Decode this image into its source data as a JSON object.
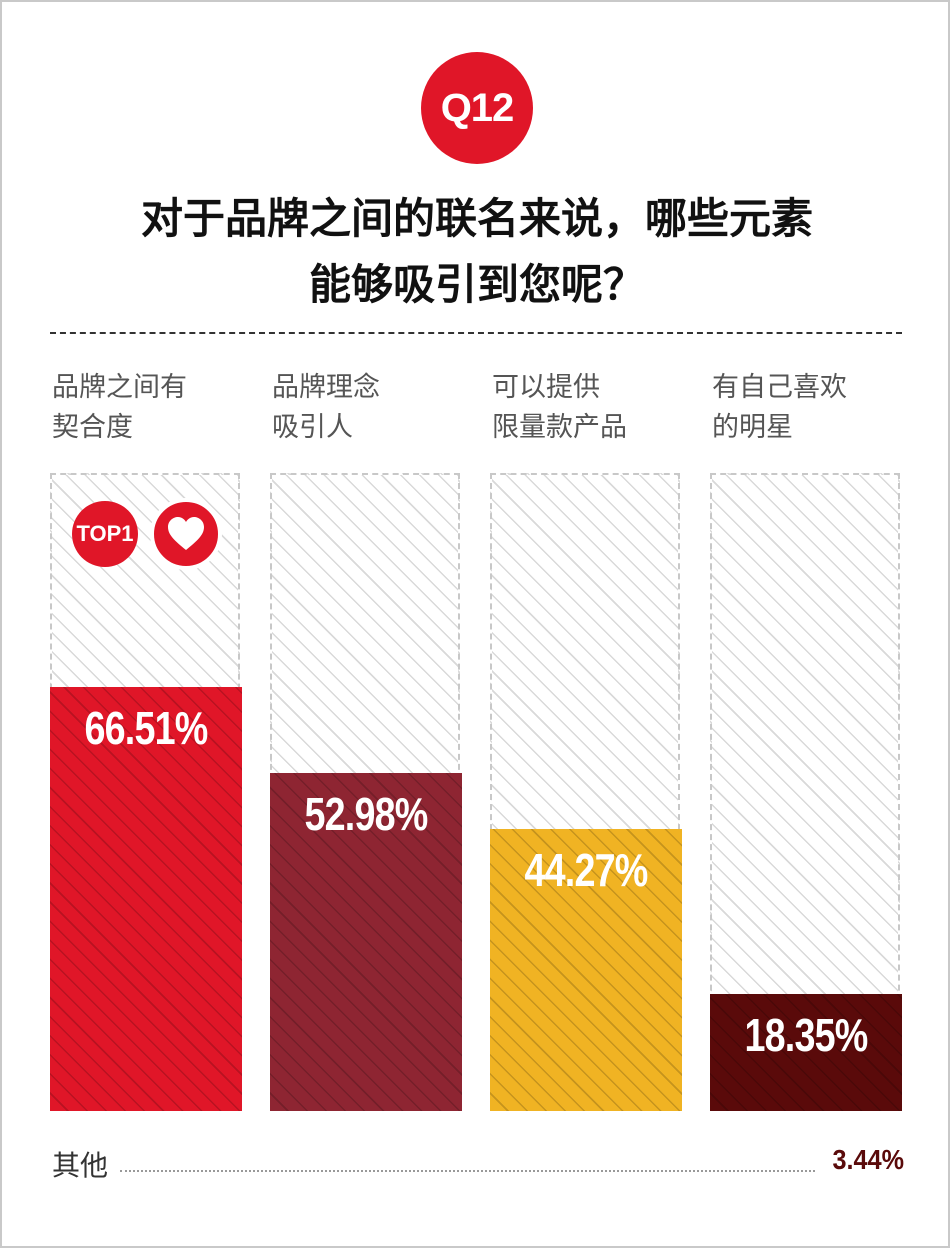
{
  "badge": {
    "question": "Q12"
  },
  "title": {
    "line1": "对于品牌之间的联名来说，哪些元素",
    "line2": "能够吸引到您呢？"
  },
  "top_badge": {
    "label": "TOP1",
    "icon": "heart-icon"
  },
  "chart_data": {
    "type": "bar",
    "categories": [
      "品牌之间有契合度",
      "品牌理念吸引人",
      "可以提供限量款产品",
      "有自己喜欢的明星"
    ],
    "category_lines": [
      [
        "品牌之间有",
        "契合度"
      ],
      [
        "品牌理念",
        "吸引人"
      ],
      [
        "可以提供",
        "限量款产品"
      ],
      [
        "有自己喜欢",
        "的明星"
      ]
    ],
    "values": [
      66.51,
      52.98,
      44.27,
      18.35
    ],
    "labels": [
      "66.51%",
      "52.98%",
      "44.27%",
      "18.35%"
    ],
    "colors": [
      "#e01628",
      "#8e2532",
      "#f0b323",
      "#5a0a0a"
    ],
    "ylim": [
      0,
      100
    ],
    "grid": false,
    "other": {
      "label": "其他",
      "value": 3.44,
      "text": "3.44%"
    }
  }
}
